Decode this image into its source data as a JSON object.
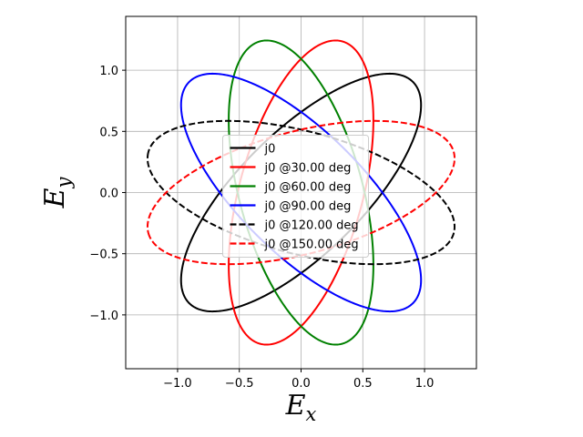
{
  "chart_data": {
    "type": "line",
    "title": "",
    "xlabel": {
      "base": "E",
      "sub": "x"
    },
    "ylabel": {
      "base": "E",
      "sub": "y"
    },
    "xlim": [
      -1.42,
      1.42
    ],
    "ylim": [
      -1.44,
      1.44
    ],
    "xticks": [
      -1.0,
      -0.5,
      0.0,
      0.5,
      1.0
    ],
    "yticks": [
      -1.0,
      -0.5,
      0.0,
      0.5,
      1.0
    ],
    "xtick_labels": [
      "−1.0",
      "−0.5",
      "0.0",
      "0.5",
      "1.0"
    ],
    "ytick_labels": [
      "−1.0",
      "−0.5",
      "0.0",
      "0.5",
      "1.0"
    ],
    "grid": true,
    "legend_position": "center",
    "ellipse": {
      "semi_major": 1.28,
      "semi_minor": 0.5,
      "base_tilt_deg": 45
    },
    "series": [
      {
        "name": "j0",
        "rotation_deg": 0,
        "color": "#000000",
        "dashed": false
      },
      {
        "name": "j0 @30.00 deg",
        "rotation_deg": 30,
        "color": "#ff0000",
        "dashed": false
      },
      {
        "name": "j0 @60.00 deg",
        "rotation_deg": 60,
        "color": "#008000",
        "dashed": false
      },
      {
        "name": "j0 @90.00 deg",
        "rotation_deg": 90,
        "color": "#0000ff",
        "dashed": false
      },
      {
        "name": "j0 @120.00 deg",
        "rotation_deg": 120,
        "color": "#000000",
        "dashed": true
      },
      {
        "name": "j0 @150.00 deg",
        "rotation_deg": 150,
        "color": "#ff0000",
        "dashed": true
      }
    ]
  }
}
